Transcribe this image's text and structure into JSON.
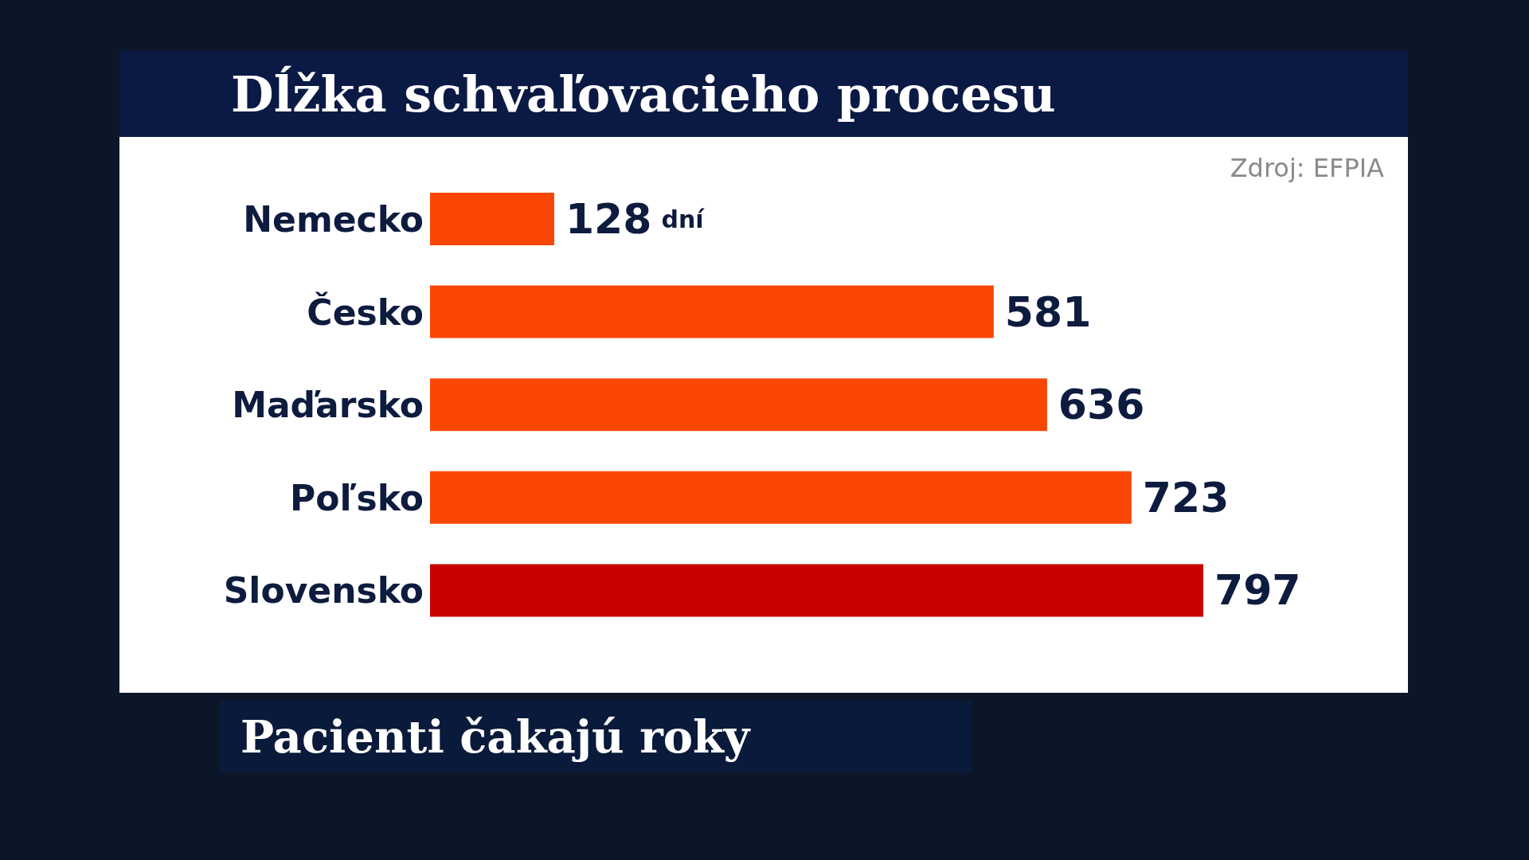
{
  "chart_data": {
    "type": "bar",
    "orientation": "horizontal",
    "title": "Dĺžka schvaľovacieho procesu",
    "subtitle": "Pacienti čakajú roky",
    "annotations": [
      "Zdroj: EFPIA"
    ],
    "categories": [
      "Nemecko",
      "Česko",
      "Maďarsko",
      "Poľsko",
      "Slovensko"
    ],
    "values": [
      128,
      581,
      636,
      723,
      797
    ],
    "colors": [
      "#fa4605",
      "#fa4605",
      "#fa4605",
      "#fa4605",
      "#c80000"
    ],
    "value_labels": [
      "128 dní",
      "581",
      "636",
      "723",
      "797"
    ]
  }
}
